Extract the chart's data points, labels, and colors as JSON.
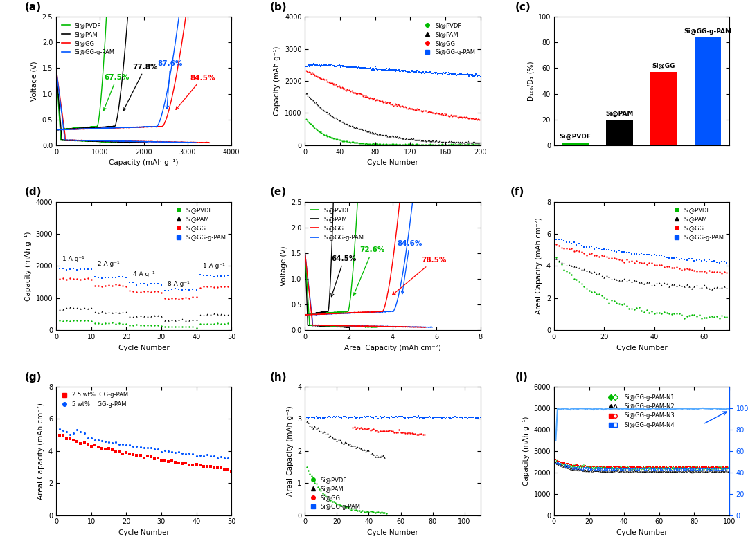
{
  "colors": {
    "pvdf": "#00bb00",
    "pam": "#000000",
    "gg": "#ff0000",
    "ggpam": "#0055ff"
  },
  "panel_c": {
    "categories": [
      "Si@PVDF",
      "Si@PAM",
      "Si@GG",
      "Si@GG-g-PAM"
    ],
    "values": [
      2,
      20,
      57,
      84
    ],
    "bar_colors": [
      "#00bb00",
      "#000000",
      "#ff0000",
      "#0055ff"
    ],
    "ylim": [
      0,
      100
    ],
    "yticks": [
      0,
      20,
      40,
      60,
      80,
      100
    ]
  }
}
